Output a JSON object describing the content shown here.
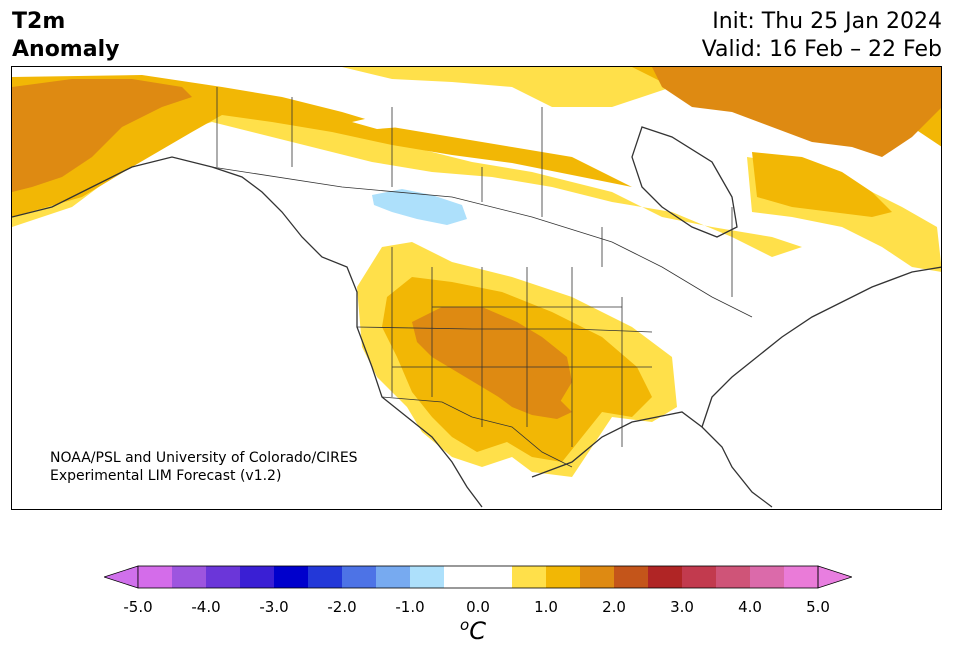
{
  "header": {
    "variable_line1": "T2m",
    "variable_line2": "Anomaly",
    "init_label": "Init: Thu 25 Jan 2024",
    "valid_label": "Valid: 16 Feb – 22 Feb"
  },
  "credit": {
    "line1": "NOAA/PSL and University of Colorado/CIRES",
    "line2": "Experimental LIM Forecast (v1.2)"
  },
  "colorbar": {
    "unit_base": "C",
    "unit_sup": "o",
    "tick_labels": [
      "-5.0",
      "-4.0",
      "-3.0",
      "-2.0",
      "-1.0",
      "0.0",
      "1.0",
      "2.0",
      "3.0",
      "4.0",
      "5.0"
    ],
    "colors": [
      "#d46cea",
      "#9d55df",
      "#6b36d9",
      "#3a1fd4",
      "#0000cc",
      "#2338d8",
      "#4d73e6",
      "#77aaf0",
      "#ade0fb",
      "#ffffff",
      "#ffffff",
      "#ffe04a",
      "#f2b705",
      "#de8a12",
      "#c4551a",
      "#b02525",
      "#c23a4e",
      "#cf5478",
      "#db6aaa",
      "#ea7bd8"
    ],
    "under_color": "#d070ec",
    "over_color": "#e87ee0"
  },
  "map": {
    "region": "North America",
    "land_color": "#ffffff",
    "border_color": "#333333"
  }
}
